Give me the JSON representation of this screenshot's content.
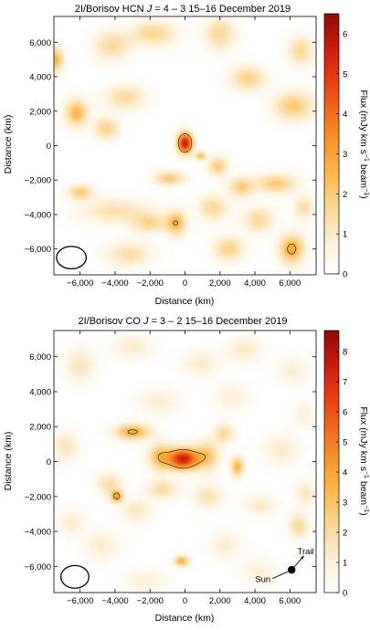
{
  "chart_data": [
    {
      "type": "heatmap",
      "title": "2I/Borisov HCN J = 4 – 3 15–16 December 2019",
      "title_parts": {
        "prefix": "2I/Borisov HCN ",
        "italic": "J",
        "suffix": " = 4 – 3 15–16 December 2019"
      },
      "xlabel": "Distance (km)",
      "ylabel": "Distance (km)",
      "xlim": [
        -7500,
        7500
      ],
      "ylim": [
        -7500,
        7500
      ],
      "x_ticks": [
        -6000,
        -4000,
        -2000,
        0,
        2000,
        4000,
        6000
      ],
      "y_ticks": [
        -6000,
        -4000,
        -2000,
        0,
        2000,
        4000,
        6000
      ],
      "x_tick_labels": [
        "−6,000",
        "−4,000",
        "−2,000",
        "0",
        "2,000",
        "4,000",
        "6,000"
      ],
      "y_tick_labels": [
        "−6,000",
        "−4,000",
        "−2,000",
        "0",
        "2,000",
        "4,000",
        "6,000"
      ],
      "colorbar": {
        "label": "Flux (mJy km s⁻¹ beam⁻¹)",
        "label_parts": {
          "base": "Flux (mJy km s",
          "sup1": "−1",
          "mid": " beam",
          "sup2": "−1",
          "end": ")"
        },
        "min": 0,
        "max": 6.5,
        "ticks": [
          0,
          1,
          2,
          3,
          4,
          5,
          6
        ],
        "tick_labels": [
          "0",
          "1",
          "2",
          "3",
          "4",
          "5",
          "6"
        ]
      },
      "peak_flux": 5.6,
      "sources": [
        {
          "x": 0,
          "y": 150,
          "flux": 5.6,
          "sigma_x": 300,
          "sigma_y": 420
        },
        {
          "x": 900,
          "y": -600,
          "flux": 2.4,
          "sigma_x": 220,
          "sigma_y": 160
        },
        {
          "x": -900,
          "y": -1900,
          "flux": 2.0,
          "sigma_x": 600,
          "sigma_y": 280
        },
        {
          "x": -6200,
          "y": 1900,
          "flux": 2.5,
          "sigma_x": 450,
          "sigma_y": 550
        },
        {
          "x": -7400,
          "y": 5000,
          "flux": 2.5,
          "sigma_x": 300,
          "sigma_y": 500
        },
        {
          "x": -4500,
          "y": 1000,
          "flux": 1.8,
          "sigma_x": 500,
          "sigma_y": 450
        },
        {
          "x": -3400,
          "y": 2800,
          "flux": 1.5,
          "sigma_x": 800,
          "sigma_y": 500
        },
        {
          "x": -4200,
          "y": 5800,
          "flux": 1.6,
          "sigma_x": 700,
          "sigma_y": 600
        },
        {
          "x": -1800,
          "y": 6500,
          "flux": 1.7,
          "sigma_x": 900,
          "sigma_y": 500
        },
        {
          "x": 2000,
          "y": 6500,
          "flux": 1.6,
          "sigma_x": 600,
          "sigma_y": 700
        },
        {
          "x": 3600,
          "y": 3900,
          "flux": 1.8,
          "sigma_x": 700,
          "sigma_y": 500
        },
        {
          "x": 6200,
          "y": 2300,
          "flux": 2.0,
          "sigma_x": 800,
          "sigma_y": 600
        },
        {
          "x": 6600,
          "y": 5500,
          "flux": 1.6,
          "sigma_x": 500,
          "sigma_y": 600
        },
        {
          "x": 1900,
          "y": -1200,
          "flux": 1.9,
          "sigma_x": 400,
          "sigma_y": 400
        },
        {
          "x": 3200,
          "y": -2400,
          "flux": 1.9,
          "sigma_x": 500,
          "sigma_y": 400
        },
        {
          "x": 5200,
          "y": -2200,
          "flux": 2.0,
          "sigma_x": 800,
          "sigma_y": 400
        },
        {
          "x": -6000,
          "y": -2700,
          "flux": 2.0,
          "sigma_x": 500,
          "sigma_y": 300
        },
        {
          "x": -4000,
          "y": -3800,
          "flux": 1.3,
          "sigma_x": 1400,
          "sigma_y": 500
        },
        {
          "x": -2000,
          "y": -4500,
          "flux": 1.6,
          "sigma_x": 700,
          "sigma_y": 400
        },
        {
          "x": -500,
          "y": -4500,
          "flux": 2.4,
          "sigma_x": 400,
          "sigma_y": 500
        },
        {
          "x": 1600,
          "y": -3600,
          "flux": 1.6,
          "sigma_x": 600,
          "sigma_y": 500
        },
        {
          "x": -3200,
          "y": -6300,
          "flux": 1.4,
          "sigma_x": 900,
          "sigma_y": 500
        },
        {
          "x": 2500,
          "y": -6000,
          "flux": 1.8,
          "sigma_x": 600,
          "sigma_y": 500
        },
        {
          "x": 6100,
          "y": -6000,
          "flux": 2.8,
          "sigma_x": 500,
          "sigma_y": 600
        },
        {
          "x": 4200,
          "y": -4300,
          "flux": 1.6,
          "sigma_x": 600,
          "sigma_y": 500
        },
        {
          "x": 6800,
          "y": -3600,
          "flux": 1.4,
          "sigma_x": 400,
          "sigma_y": 500
        }
      ],
      "beam": {
        "x": -6500,
        "y": -6500,
        "rx": 850,
        "ry": 650
      },
      "annotation": null
    },
    {
      "type": "heatmap",
      "title": "2I/Borisov CO J = 3 – 2 15–16 December 2019",
      "title_parts": {
        "prefix": "2I/Borisov CO ",
        "italic": "J",
        "suffix": " = 3 – 2 15–16 December 2019"
      },
      "xlabel": "Distance (km)",
      "ylabel": "Distance (km)",
      "xlim": [
        -7500,
        7500
      ],
      "ylim": [
        -7500,
        7500
      ],
      "x_ticks": [
        -6000,
        -4000,
        -2000,
        0,
        2000,
        4000,
        6000
      ],
      "y_ticks": [
        -6000,
        -4000,
        -2000,
        0,
        2000,
        4000,
        6000
      ],
      "x_tick_labels": [
        "−6,000",
        "−4,000",
        "−2,000",
        "0",
        "2,000",
        "4,000",
        "6,000"
      ],
      "y_tick_labels": [
        "−6,000",
        "−4,000",
        "−2,000",
        "0",
        "2,000",
        "4,000",
        "6,000"
      ],
      "colorbar": {
        "label": "Flux (mJy km s⁻¹ beam⁻¹)",
        "label_parts": {
          "base": "Flux (mJy km s",
          "sup1": "−1",
          "mid": " beam",
          "sup2": "−1",
          "end": ")"
        },
        "min": 0,
        "max": 8.7,
        "ticks": [
          0,
          1,
          2,
          3,
          4,
          5,
          6,
          7,
          8
        ],
        "tick_labels": [
          "0",
          "1",
          "2",
          "3",
          "4",
          "5",
          "6",
          "7",
          "8"
        ]
      },
      "peak_flux": 7.6,
      "sources": [
        {
          "x": -100,
          "y": 150,
          "flux": 7.6,
          "sigma_x": 550,
          "sigma_y": 420
        },
        {
          "x": -1400,
          "y": 250,
          "flux": 3.4,
          "sigma_x": 500,
          "sigma_y": 550
        },
        {
          "x": 1200,
          "y": 300,
          "flux": 3.0,
          "sigma_x": 500,
          "sigma_y": 600
        },
        {
          "x": -3000,
          "y": 1700,
          "flux": 3.8,
          "sigma_x": 700,
          "sigma_y": 320
        },
        {
          "x": 2200,
          "y": 1600,
          "flux": 2.2,
          "sigma_x": 400,
          "sigma_y": 400
        },
        {
          "x": 3000,
          "y": -300,
          "flux": 3.6,
          "sigma_x": 250,
          "sigma_y": 400
        },
        {
          "x": -3900,
          "y": -2000,
          "flux": 3.8,
          "sigma_x": 250,
          "sigma_y": 250
        },
        {
          "x": -4300,
          "y": -1300,
          "flux": 2.0,
          "sigma_x": 500,
          "sigma_y": 450
        },
        {
          "x": -200,
          "y": -5700,
          "flux": 3.6,
          "sigma_x": 300,
          "sigma_y": 220
        },
        {
          "x": -1300,
          "y": -1600,
          "flux": 2.0,
          "sigma_x": 600,
          "sigma_y": 400
        },
        {
          "x": 1300,
          "y": -2000,
          "flux": 1.7,
          "sigma_x": 600,
          "sigma_y": 500
        },
        {
          "x": -2800,
          "y": -2800,
          "flux": 1.5,
          "sigma_x": 600,
          "sigma_y": 500
        },
        {
          "x": 4300,
          "y": -2500,
          "flux": 1.4,
          "sigma_x": 600,
          "sigma_y": 400
        },
        {
          "x": 6500,
          "y": -3700,
          "flux": 2.2,
          "sigma_x": 400,
          "sigma_y": 500
        },
        {
          "x": 6900,
          "y": -1800,
          "flux": 1.5,
          "sigma_x": 400,
          "sigma_y": 500
        },
        {
          "x": 5500,
          "y": 700,
          "flux": 1.3,
          "sigma_x": 700,
          "sigma_y": 600
        },
        {
          "x": -6800,
          "y": 900,
          "flux": 1.6,
          "sigma_x": 500,
          "sigma_y": 600
        },
        {
          "x": -6000,
          "y": 5500,
          "flux": 1.6,
          "sigma_x": 600,
          "sigma_y": 700
        },
        {
          "x": -3000,
          "y": 6600,
          "flux": 1.2,
          "sigma_x": 800,
          "sigma_y": 500
        },
        {
          "x": 900,
          "y": 5600,
          "flux": 1.3,
          "sigma_x": 700,
          "sigma_y": 500
        },
        {
          "x": 3400,
          "y": 6400,
          "flux": 1.4,
          "sigma_x": 700,
          "sigma_y": 500
        },
        {
          "x": 6200,
          "y": 5200,
          "flux": 1.2,
          "sigma_x": 600,
          "sigma_y": 500
        },
        {
          "x": -1500,
          "y": 3400,
          "flux": 1.2,
          "sigma_x": 800,
          "sigma_y": 500
        },
        {
          "x": 2700,
          "y": 3700,
          "flux": 1.1,
          "sigma_x": 700,
          "sigma_y": 500
        },
        {
          "x": -4800,
          "y": -4800,
          "flux": 1.2,
          "sigma_x": 700,
          "sigma_y": 600
        },
        {
          "x": 2300,
          "y": -4800,
          "flux": 1.3,
          "sigma_x": 600,
          "sigma_y": 500
        },
        {
          "x": 4200,
          "y": -6300,
          "flux": 1.1,
          "sigma_x": 700,
          "sigma_y": 500
        },
        {
          "x": -2300,
          "y": -6800,
          "flux": 1.1,
          "sigma_x": 800,
          "sigma_y": 400
        },
        {
          "x": 6800,
          "y": 2700,
          "flux": 1.1,
          "sigma_x": 400,
          "sigma_y": 500
        },
        {
          "x": -6500,
          "y": -3500,
          "flux": 1.3,
          "sigma_x": 500,
          "sigma_y": 500
        }
      ],
      "beam": {
        "x": -6300,
        "y": -6600,
        "rx": 800,
        "ry": 650
      },
      "annotation": {
        "sun_label": "Sun",
        "trail_label": "Trail",
        "dot": {
          "x": 6100,
          "y": -6200
        },
        "sun_tip": {
          "x": 5000,
          "y": -6700
        },
        "trail_tip": {
          "x": 6800,
          "y": -5400
        }
      }
    }
  ]
}
